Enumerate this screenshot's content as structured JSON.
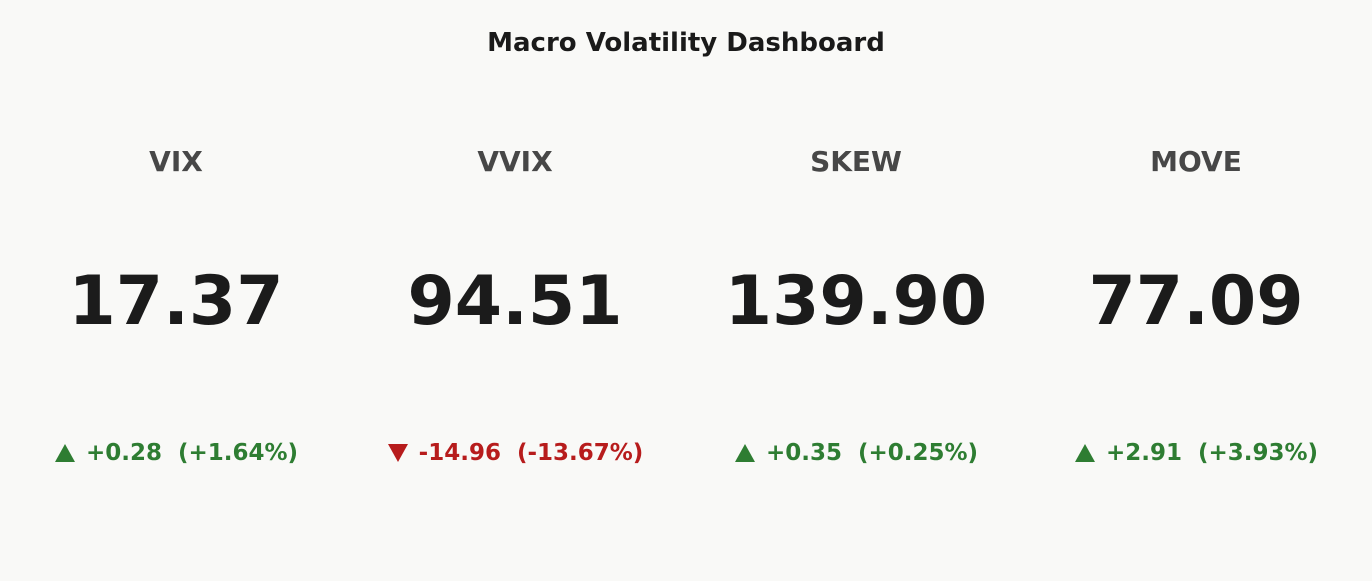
{
  "chart_data": {
    "type": "indicator",
    "title": "Macro Volatility Dashboard",
    "indicators": [
      {
        "name": "VIX",
        "value": 17.37,
        "value_label": "17.37",
        "delta": 0.28,
        "delta_label": "+0.28",
        "delta_percent": 1.64,
        "delta_percent_label": "(+1.64%)"
      },
      {
        "name": "VVIX",
        "value": 94.51,
        "value_label": "94.51",
        "delta": -14.96,
        "delta_label": "-14.96",
        "delta_percent": -13.67,
        "delta_percent_label": "(-13.67%)"
      },
      {
        "name": "SKEW",
        "value": 139.9,
        "value_label": "139.90",
        "delta": 0.35,
        "delta_label": "+0.35",
        "delta_percent": 0.25,
        "delta_percent_label": "(+0.25%)"
      },
      {
        "name": "MOVE",
        "value": 77.09,
        "value_label": "77.09",
        "delta": 2.91,
        "delta_label": "+2.91",
        "delta_percent": 3.93,
        "delta_percent_label": "(+3.93%)"
      }
    ],
    "increasing_color": "#2e7d32",
    "decreasing_color": "#b71c1c"
  }
}
